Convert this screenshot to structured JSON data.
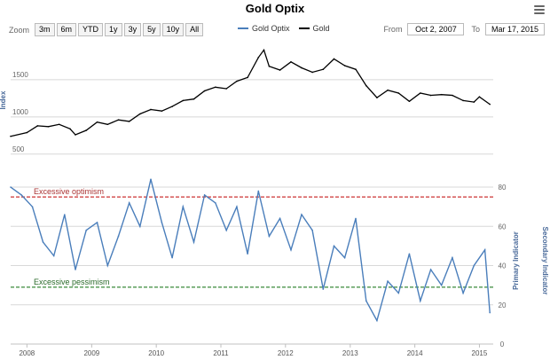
{
  "title": "Gold Optix",
  "zoom": {
    "label": "Zoom",
    "buttons": [
      "3m",
      "6m",
      "YTD",
      "1y",
      "3y",
      "5y",
      "10y",
      "All"
    ]
  },
  "legend": [
    {
      "name": "Gold Optix",
      "color": "#4a7ebb"
    },
    {
      "name": "Gold",
      "color": "#000000"
    }
  ],
  "range": {
    "from_label": "From",
    "from_value": "Oct 2, 2007",
    "to_label": "To",
    "to_value": "Mar 17, 2015"
  },
  "colors": {
    "optix": "#4a7ebb",
    "gold": "#000000",
    "optimism": "#cc3333",
    "pessimism": "#3a8a3a",
    "grid": "#d8d8d8"
  },
  "icons": {
    "menu": "hamburger-menu-icon"
  },
  "chart_data": [
    {
      "type": "line",
      "series_name": "Gold",
      "ylabel": "Index",
      "ylim": [
        450,
        2000
      ],
      "yticks": [
        500,
        1000,
        1500
      ],
      "x": [
        "2007-10",
        "2008-01",
        "2008-03",
        "2008-05",
        "2008-07",
        "2008-09",
        "2008-10",
        "2008-12",
        "2009-02",
        "2009-04",
        "2009-06",
        "2009-08",
        "2009-10",
        "2009-12",
        "2010-02",
        "2010-04",
        "2010-06",
        "2010-08",
        "2010-10",
        "2010-12",
        "2011-02",
        "2011-04",
        "2011-06",
        "2011-08",
        "2011-09",
        "2011-10",
        "2011-12",
        "2012-02",
        "2012-04",
        "2012-06",
        "2012-08",
        "2012-10",
        "2012-12",
        "2013-02",
        "2013-04",
        "2013-06",
        "2013-08",
        "2013-10",
        "2013-12",
        "2014-02",
        "2014-04",
        "2014-06",
        "2014-08",
        "2014-10",
        "2014-12",
        "2015-01",
        "2015-03"
      ],
      "values": [
        740,
        790,
        880,
        870,
        900,
        840,
        760,
        820,
        930,
        900,
        960,
        940,
        1040,
        1100,
        1080,
        1140,
        1220,
        1240,
        1350,
        1400,
        1380,
        1480,
        1530,
        1800,
        1900,
        1680,
        1630,
        1740,
        1660,
        1600,
        1640,
        1780,
        1690,
        1640,
        1420,
        1260,
        1360,
        1320,
        1210,
        1320,
        1290,
        1300,
        1290,
        1220,
        1200,
        1270,
        1170
      ]
    },
    {
      "type": "line",
      "series_name": "Gold Optix",
      "ylabel": "Secondary Indicator",
      "ylabel2": "Primary Indicator",
      "ylim": [
        0,
        85
      ],
      "yticks": [
        0,
        20,
        40,
        60,
        80
      ],
      "x_ticks": [
        "2008",
        "2009",
        "2010",
        "2011",
        "2012",
        "2013",
        "2014",
        "2015"
      ],
      "annotations": [
        {
          "text": "Excessive optimism",
          "y": 75
        },
        {
          "text": "Excessive pessimism",
          "y": 29
        }
      ],
      "x": [
        "2007-10",
        "2007-12",
        "2008-02",
        "2008-04",
        "2008-06",
        "2008-08",
        "2008-10",
        "2008-12",
        "2009-02",
        "2009-04",
        "2009-06",
        "2009-08",
        "2009-10",
        "2009-12",
        "2010-02",
        "2010-04",
        "2010-06",
        "2010-08",
        "2010-10",
        "2010-12",
        "2011-02",
        "2011-04",
        "2011-06",
        "2011-08",
        "2011-10",
        "2011-12",
        "2012-02",
        "2012-04",
        "2012-06",
        "2012-08",
        "2012-10",
        "2012-12",
        "2013-02",
        "2013-04",
        "2013-06",
        "2013-08",
        "2013-10",
        "2013-12",
        "2014-02",
        "2014-04",
        "2014-06",
        "2014-08",
        "2014-10",
        "2014-12",
        "2015-02",
        "2015-03"
      ],
      "values": [
        80,
        76,
        70,
        52,
        45,
        66,
        38,
        58,
        62,
        40,
        55,
        72,
        60,
        84,
        62,
        44,
        70,
        52,
        76,
        72,
        58,
        70,
        46,
        78,
        55,
        64,
        48,
        66,
        58,
        28,
        50,
        44,
        64,
        22,
        12,
        32,
        26,
        46,
        22,
        38,
        30,
        44,
        26,
        40,
        48,
        16
      ]
    }
  ]
}
